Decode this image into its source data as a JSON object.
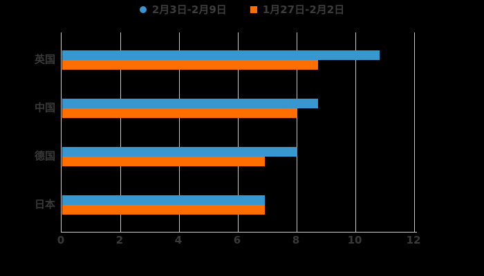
{
  "chart_data": {
    "type": "bar",
    "orientation": "horizontal",
    "title": "",
    "xlabel": "",
    "ylabel": "",
    "categories": [
      "英国",
      "中国",
      "德国",
      "日本"
    ],
    "series": [
      {
        "name": "2月3日-2月9日",
        "marker": "circle",
        "color": "#3797ce",
        "values": [
          10.8,
          8.7,
          8.0,
          6.9
        ]
      },
      {
        "name": "1月27日-2月2日",
        "marker": "square",
        "color": "#ff6e00",
        "values": [
          8.7,
          8.0,
          6.9,
          6.9
        ]
      }
    ],
    "xticks": [
      0,
      2,
      4,
      6,
      8,
      10,
      12
    ],
    "xlim": [
      0,
      12
    ],
    "grid": true,
    "legend_position": "top"
  },
  "colors": {
    "background": "#000000",
    "axis_line": "#cfcfcf",
    "gridline": "#cbcbcb",
    "text": "#3a3a3a",
    "series_blue": "#3797ce",
    "series_orange": "#ff6e00"
  }
}
